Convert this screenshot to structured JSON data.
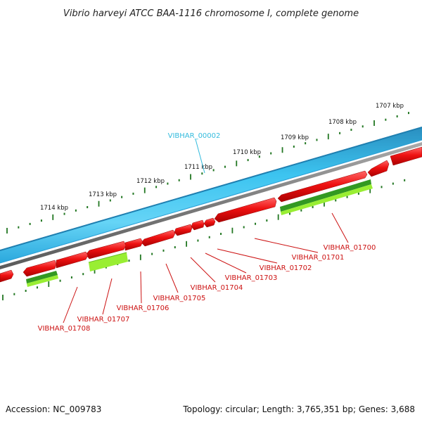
{
  "title": "Vibrio harveyi ATCC BAA-1116 chromosome I, complete genome",
  "footer": {
    "accession": "Accession: NC_009783",
    "summary": "Topology: circular; Length: 3,765,351 bp; Genes: 3,688"
  },
  "ticks": [
    "1707 kbp",
    "1708 kbp",
    "1709 kbp",
    "1710 kbp",
    "1711 kbp",
    "1712 kbp",
    "1713 kbp",
    "1714 kbp"
  ],
  "top_gene_label": "VIBHAR_00002",
  "gene_labels": [
    "VIBHAR_01700",
    "VIBHAR_01701",
    "VIBHAR_01702",
    "VIBHAR_01703",
    "VIBHAR_01704",
    "VIBHAR_01705",
    "VIBHAR_01706",
    "VIBHAR_01707",
    "VIBHAR_01708"
  ],
  "colors": {
    "forward_strand": "#33bbee",
    "backbone": "#888888",
    "reverse_genes": "#ee1111",
    "green_dark": "#339922",
    "green_light": "#99ee33",
    "label_red": "#cc1111",
    "label_blue": "#33bbdd",
    "tick_green": "#227722"
  }
}
